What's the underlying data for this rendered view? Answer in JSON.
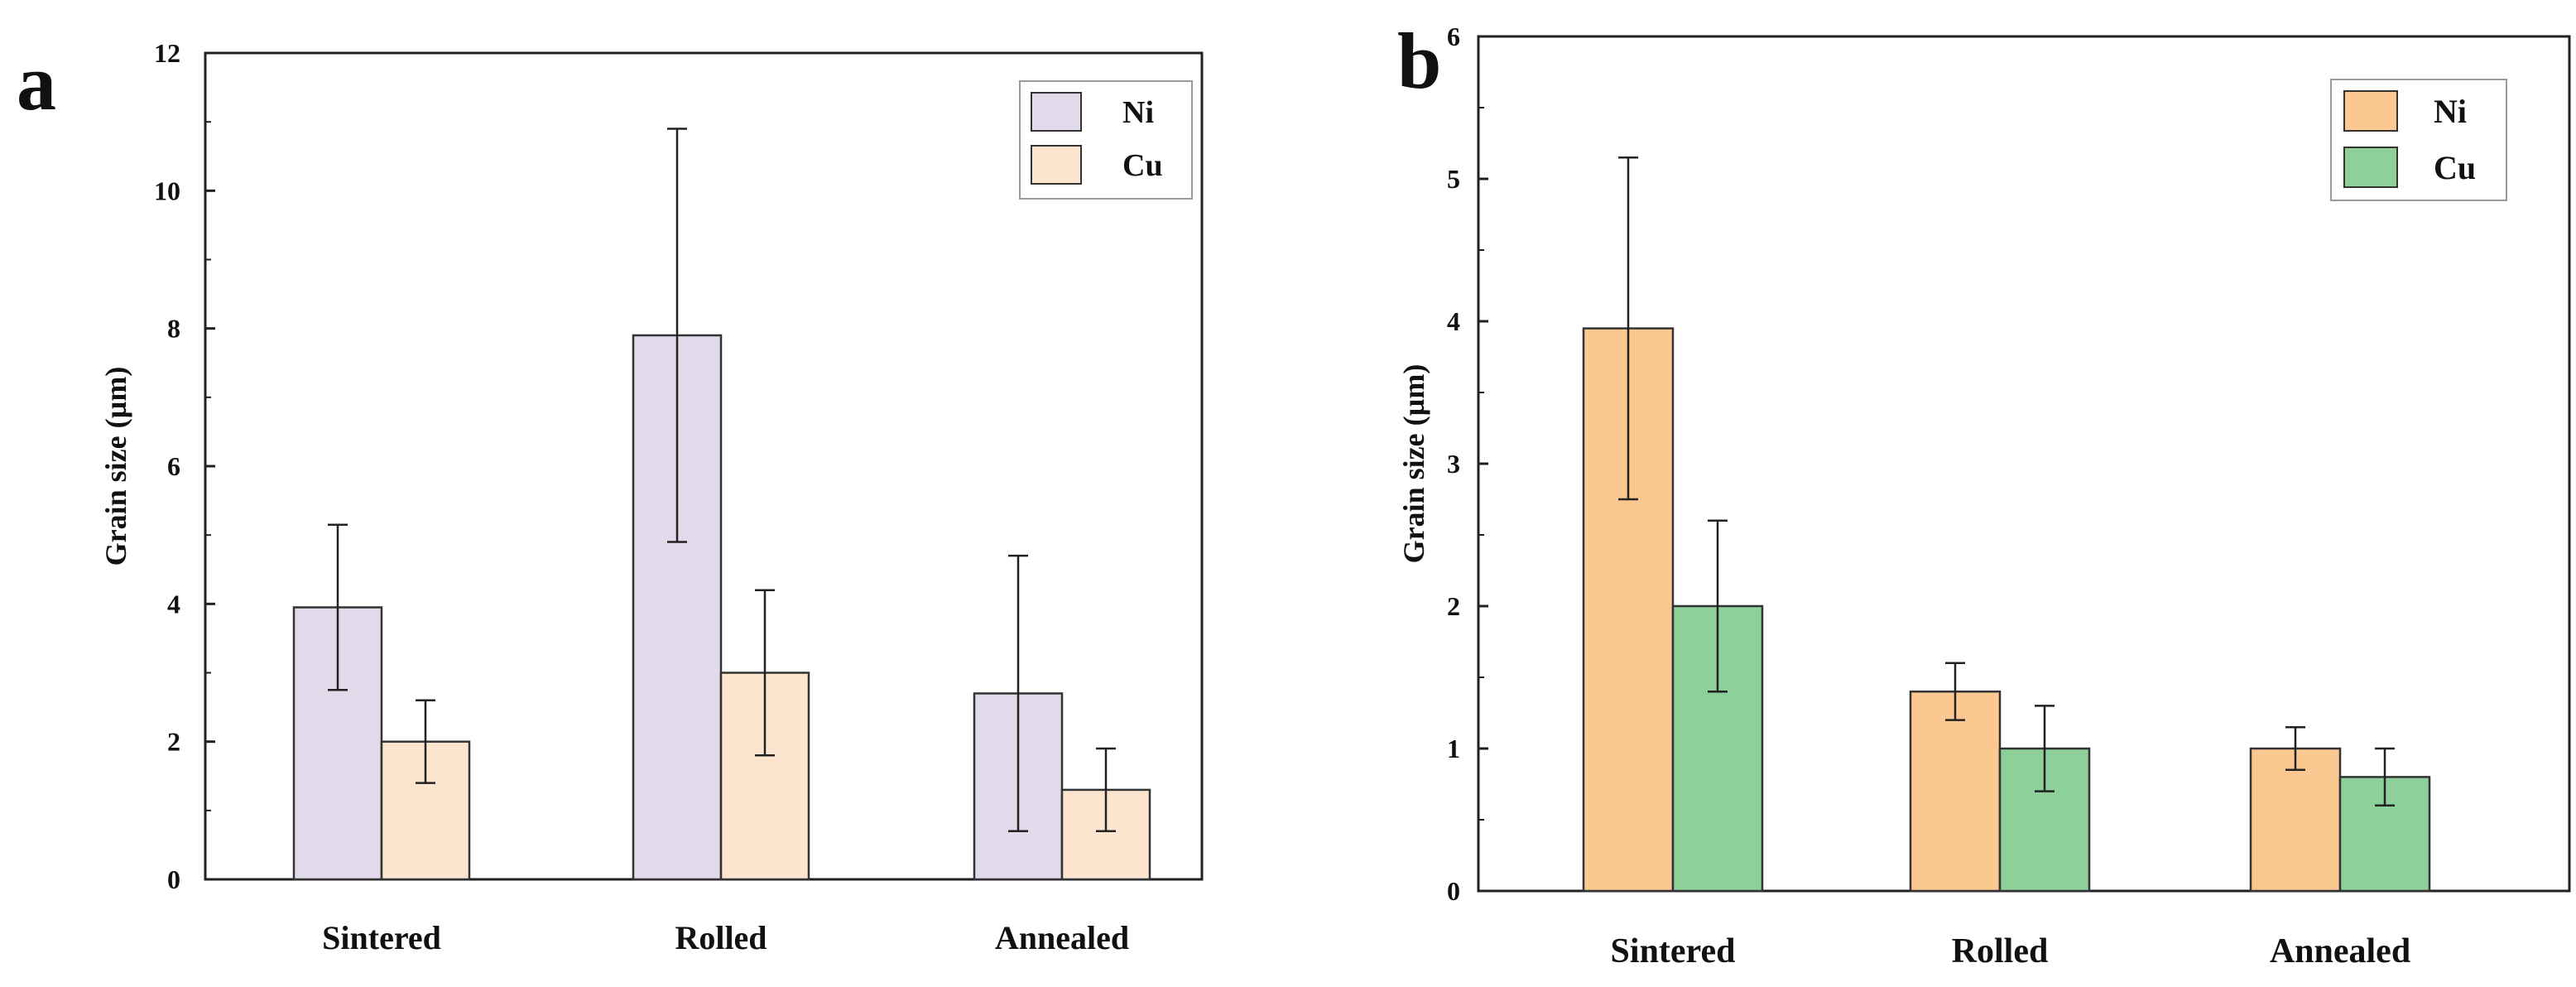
{
  "chart_data": [
    {
      "type": "bar",
      "panel_label": "a",
      "categories": [
        "Sintered",
        "Rolled",
        "Annealed"
      ],
      "series": [
        {
          "name": "Ni",
          "values": [
            3.95,
            7.9,
            2.7
          ],
          "errors": [
            1.2,
            3.0,
            2.0
          ],
          "color": "#e2d9ea"
        },
        {
          "name": "Cu",
          "values": [
            2.0,
            3.0,
            1.3
          ],
          "errors": [
            0.6,
            1.2,
            0.6
          ],
          "color": "#fde5d0"
        }
      ],
      "ylabel": "Grain size (µm)",
      "xlabel": "",
      "ylim": [
        0,
        12
      ],
      "yticks": [
        "0",
        "2",
        "4",
        "6",
        "8",
        "10",
        "12"
      ],
      "legend_position": "top-right",
      "grid": false
    },
    {
      "type": "bar",
      "panel_label": "b",
      "categories": [
        "Sintered",
        "Rolled",
        "Annealed"
      ],
      "series": [
        {
          "name": "Ni",
          "values": [
            3.95,
            1.4,
            1.0
          ],
          "errors": [
            1.2,
            0.2,
            0.15
          ],
          "color": "#fcc891"
        },
        {
          "name": "Cu",
          "values": [
            2.0,
            1.0,
            0.8
          ],
          "errors": [
            0.6,
            0.3,
            0.2
          ],
          "color": "#8ed09a"
        }
      ],
      "ylabel": "Grain size (µm)",
      "xlabel": "",
      "ylim": [
        0,
        6
      ],
      "yticks": [
        "0",
        "1",
        "2",
        "3",
        "4",
        "5",
        "6"
      ],
      "legend_position": "top-right",
      "grid": false
    }
  ]
}
